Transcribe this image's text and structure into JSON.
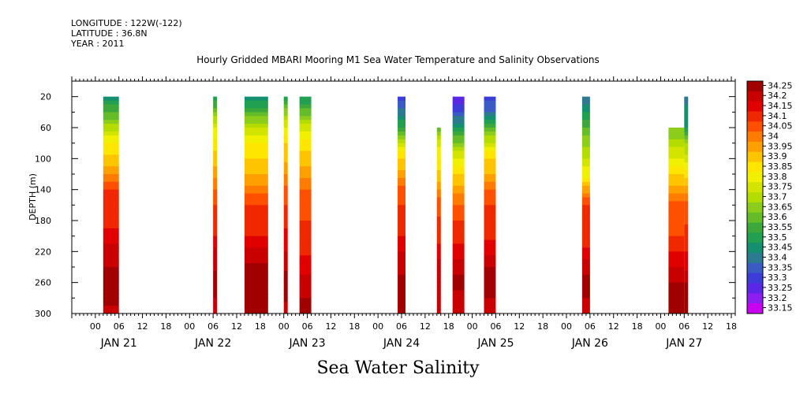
{
  "header": {
    "longitude": "LONGITUDE : 122W(-122)",
    "latitude": "LATITUDE : 36.8N",
    "year": "YEAR : 2011"
  },
  "chart_data": {
    "type": "heatmap",
    "title": "Hourly Gridded MBARI Mooring M1 Sea Water Temperature and Salinity Observations",
    "bottom_title": "Sea Water Salinity",
    "ylabel": "DEPTH (m)",
    "xlabel": "",
    "ylim": [
      0,
      300
    ],
    "y_reversed": true,
    "y_ticks": [
      20,
      60,
      100,
      140,
      180,
      220,
      260,
      300
    ],
    "x_hour_ticks": [
      "00",
      "06",
      "12",
      "18"
    ],
    "x_days": [
      "JAN 21",
      "JAN 22",
      "JAN 23",
      "JAN 24",
      "JAN 25",
      "JAN 26",
      "JAN 27"
    ],
    "x_hour_range": [
      -6,
      163
    ],
    "colorbar": {
      "levels": [
        34.25,
        34.2,
        34.15,
        34.1,
        34.05,
        34,
        33.95,
        33.9,
        33.85,
        33.8,
        33.75,
        33.7,
        33.65,
        33.6,
        33.55,
        33.5,
        33.45,
        33.4,
        33.35,
        33.3,
        33.25,
        33.2,
        33.15
      ],
      "labels": [
        "34.25",
        "34.2",
        "34.15",
        "34.1",
        "34.05",
        "34",
        "33.95",
        "33.9",
        "33.85",
        "33.8",
        "33.75",
        "33.7",
        "33.65",
        "33.6",
        "33.55",
        "33.5",
        "33.45",
        "33.4",
        "33.35",
        "33.3",
        "33.25",
        "33.2",
        "33.15"
      ],
      "colors": [
        "#a00000",
        "#c80000",
        "#e00000",
        "#f02800",
        "#ff5000",
        "#ff7c00",
        "#ffa000",
        "#ffc400",
        "#ffe600",
        "#f0f000",
        "#d2e400",
        "#b4dc00",
        "#8ccc1a",
        "#64bc28",
        "#3ca83c",
        "#20a050",
        "#149070",
        "#2b7a8f",
        "#3a5ac4",
        "#3c3cd8",
        "#5a28e4",
        "#8c1ef0",
        "#c800f0"
      ]
    },
    "segments": [
      {
        "start_hour": 2,
        "end_hour": 6,
        "min_depth": 20,
        "profile": [
          [
            20,
            33.42
          ],
          [
            40,
            33.55
          ],
          [
            60,
            33.67
          ],
          [
            80,
            33.8
          ],
          [
            100,
            33.87
          ],
          [
            120,
            33.95
          ],
          [
            140,
            34.05
          ],
          [
            160,
            34.07
          ],
          [
            180,
            34.08
          ],
          [
            200,
            34.12
          ],
          [
            220,
            34.17
          ],
          [
            240,
            34.2
          ],
          [
            260,
            34.24
          ],
          [
            280,
            34.22
          ],
          [
            300,
            34.18
          ]
        ]
      },
      {
        "start_hour": 30,
        "end_hour": 31,
        "min_depth": 20,
        "profile": [
          [
            20,
            33.45
          ],
          [
            40,
            33.6
          ],
          [
            60,
            33.75
          ],
          [
            80,
            33.83
          ],
          [
            100,
            33.87
          ],
          [
            120,
            33.93
          ],
          [
            140,
            34.0
          ],
          [
            160,
            34.05
          ],
          [
            200,
            34.1
          ],
          [
            220,
            34.16
          ],
          [
            260,
            34.22
          ],
          [
            300,
            34.18
          ]
        ]
      },
      {
        "start_hour": 38,
        "end_hour": 44,
        "min_depth": 20,
        "profile": [
          [
            20,
            33.4
          ],
          [
            40,
            33.55
          ],
          [
            60,
            33.7
          ],
          [
            80,
            33.8
          ],
          [
            100,
            33.85
          ],
          [
            120,
            33.9
          ],
          [
            140,
            33.98
          ],
          [
            160,
            34.05
          ],
          [
            180,
            34.08
          ],
          [
            200,
            34.1
          ],
          [
            220,
            34.16
          ],
          [
            240,
            34.21
          ],
          [
            260,
            34.24
          ],
          [
            280,
            34.22
          ],
          [
            300,
            34.2
          ]
        ]
      },
      {
        "start_hour": 48,
        "end_hour": 49,
        "min_depth": 20,
        "profile": [
          [
            20,
            33.48
          ],
          [
            40,
            33.62
          ],
          [
            60,
            33.76
          ],
          [
            80,
            33.85
          ],
          [
            100,
            33.88
          ],
          [
            120,
            33.95
          ],
          [
            140,
            34.02
          ],
          [
            180,
            34.08
          ],
          [
            220,
            34.15
          ],
          [
            260,
            34.23
          ],
          [
            300,
            34.18
          ]
        ]
      },
      {
        "start_hour": 52,
        "end_hour": 55,
        "min_depth": 20,
        "profile": [
          [
            20,
            33.45
          ],
          [
            40,
            33.58
          ],
          [
            60,
            33.72
          ],
          [
            80,
            33.82
          ],
          [
            100,
            33.88
          ],
          [
            120,
            33.93
          ],
          [
            140,
            34.0
          ],
          [
            160,
            34.03
          ],
          [
            200,
            34.07
          ],
          [
            240,
            34.12
          ],
          [
            260,
            34.18
          ],
          [
            280,
            34.2
          ],
          [
            300,
            34.2
          ]
        ]
      },
      {
        "start_hour": 77,
        "end_hour": 79,
        "min_depth": 20,
        "profile": [
          [
            20,
            33.27
          ],
          [
            40,
            33.38
          ],
          [
            60,
            33.5
          ],
          [
            80,
            33.72
          ],
          [
            100,
            33.86
          ],
          [
            120,
            33.92
          ],
          [
            140,
            34.03
          ],
          [
            160,
            34.05
          ],
          [
            200,
            34.1
          ],
          [
            220,
            34.15
          ],
          [
            260,
            34.22
          ],
          [
            300,
            34.2
          ]
        ]
      },
      {
        "start_hour": 87,
        "end_hour": 88,
        "min_depth": 60,
        "profile": [
          [
            60,
            33.55
          ],
          [
            80,
            33.74
          ],
          [
            100,
            33.8
          ],
          [
            120,
            33.86
          ],
          [
            140,
            33.96
          ],
          [
            160,
            34.03
          ],
          [
            200,
            34.08
          ],
          [
            220,
            34.13
          ],
          [
            260,
            34.2
          ],
          [
            300,
            34.15
          ]
        ]
      },
      {
        "start_hour": 91,
        "end_hour": 94,
        "min_depth": 20,
        "profile": [
          [
            20,
            33.2
          ],
          [
            40,
            33.3
          ],
          [
            60,
            33.45
          ],
          [
            80,
            33.62
          ],
          [
            100,
            33.75
          ],
          [
            120,
            33.85
          ],
          [
            140,
            33.92
          ],
          [
            160,
            34.0
          ],
          [
            180,
            34.05
          ],
          [
            200,
            34.08
          ],
          [
            220,
            34.12
          ],
          [
            240,
            34.18
          ],
          [
            260,
            34.22
          ],
          [
            300,
            34.15
          ]
        ]
      },
      {
        "start_hour": 99,
        "end_hour": 102,
        "min_depth": 20,
        "profile": [
          [
            20,
            33.27
          ],
          [
            40,
            33.35
          ],
          [
            60,
            33.55
          ],
          [
            80,
            33.72
          ],
          [
            100,
            33.86
          ],
          [
            120,
            33.9
          ],
          [
            140,
            34.0
          ],
          [
            160,
            34.05
          ],
          [
            200,
            34.08
          ],
          [
            220,
            34.14
          ],
          [
            240,
            34.2
          ],
          [
            260,
            34.23
          ],
          [
            300,
            34.17
          ]
        ]
      },
      {
        "start_hour": 124,
        "end_hour": 126,
        "min_depth": 20,
        "profile": [
          [
            20,
            33.35
          ],
          [
            40,
            33.45
          ],
          [
            60,
            33.55
          ],
          [
            80,
            33.63
          ],
          [
            100,
            33.7
          ],
          [
            120,
            33.78
          ],
          [
            140,
            33.92
          ],
          [
            160,
            34.05
          ],
          [
            200,
            34.06
          ],
          [
            220,
            34.12
          ],
          [
            240,
            34.18
          ],
          [
            260,
            34.22
          ],
          [
            300,
            34.18
          ]
        ]
      },
      {
        "start_hour": 146,
        "end_hour": 150,
        "min_depth": 60,
        "profile": [
          [
            60,
            33.6
          ],
          [
            80,
            33.68
          ],
          [
            100,
            33.74
          ],
          [
            120,
            33.84
          ],
          [
            140,
            33.93
          ],
          [
            160,
            34.02
          ],
          [
            200,
            34.05
          ],
          [
            220,
            34.1
          ],
          [
            240,
            34.15
          ],
          [
            260,
            34.2
          ],
          [
            300,
            34.22
          ]
        ]
      },
      {
        "start_hour": 150,
        "end_hour": 151,
        "min_depth": 20,
        "profile": [
          [
            20,
            33.38
          ],
          [
            60,
            33.45
          ],
          [
            80,
            33.65
          ],
          [
            100,
            33.72
          ],
          [
            120,
            33.82
          ],
          [
            140,
            33.92
          ],
          [
            160,
            34.03
          ],
          [
            200,
            34.06
          ],
          [
            240,
            34.14
          ],
          [
            260,
            34.2
          ],
          [
            300,
            34.22
          ]
        ]
      }
    ]
  }
}
